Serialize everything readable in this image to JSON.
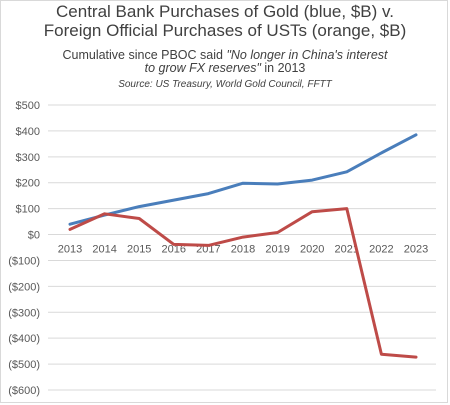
{
  "chart_data": {
    "type": "line",
    "title_line1": "Central Bank Purchases of Gold (blue, $B) v.",
    "title_line2": "Foreign Official Purchases of USTs (orange, $B)",
    "subtitle_prefix": "Cumulative since PBOC said ",
    "subtitle_quote1": "\"No longer in China's interest",
    "subtitle_quote2": "to grow FX reserves\"",
    "subtitle_suffix": " in 2013",
    "source": "Source: US Treasury, World Gold Council, FFTT",
    "x": [
      "2013",
      "2014",
      "2015",
      "2016",
      "2017",
      "2018",
      "2019",
      "2020",
      "2021",
      "2022",
      "2023"
    ],
    "y_ticks": [
      "$500",
      "$400",
      "$300",
      "$200",
      "$100",
      "$0",
      "($100)",
      "($200)",
      "($300)",
      "($400)",
      "($500)",
      "($600)"
    ],
    "ylim": [
      -600,
      500
    ],
    "grid": true,
    "series": [
      {
        "values": [
          40,
          75,
          108,
          133,
          158,
          198,
          195,
          210,
          242,
          315,
          385
        ],
        "color": "#4a7ebb"
      },
      {
        "values": [
          20,
          80,
          62,
          -38,
          -42,
          -10,
          8,
          88,
          100,
          -462,
          -473
        ],
        "color": "#be4b48"
      }
    ]
  }
}
